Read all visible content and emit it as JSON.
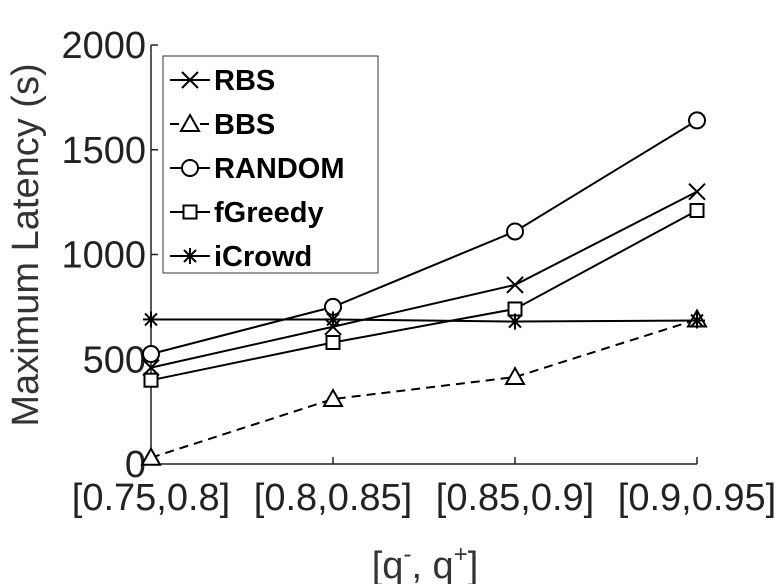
{
  "chart_data": {
    "type": "line",
    "categories": [
      "[0.75,0.8]",
      "[0.8,0.85]",
      "[0.85,0.9]",
      "[0.9,0.95]"
    ],
    "ylabel": "Maximum Latency (s)",
    "xlabel": {
      "base": "[q",
      "sup1": "-",
      "mid": ", q",
      "sup2": "+",
      "end": "]"
    },
    "ylim": [
      0,
      2000
    ],
    "yticks": [
      0,
      500,
      1000,
      1500,
      2000
    ],
    "grid": false,
    "legend_position": "top-left",
    "series": [
      {
        "name": "RBS",
        "marker": "x",
        "dash": false,
        "values": [
          460,
          655,
          855,
          1300
        ]
      },
      {
        "name": "BBS",
        "marker": "triangle",
        "dash": true,
        "values": [
          30,
          310,
          415,
          690
        ]
      },
      {
        "name": "RANDOM",
        "marker": "circle",
        "dash": false,
        "values": [
          525,
          750,
          1110,
          1640
        ]
      },
      {
        "name": "fGreedy",
        "marker": "square",
        "dash": false,
        "values": [
          400,
          580,
          740,
          1210
        ]
      },
      {
        "name": "iCrowd",
        "marker": "asterisk",
        "dash": false,
        "values": [
          690,
          690,
          680,
          685
        ]
      }
    ]
  }
}
